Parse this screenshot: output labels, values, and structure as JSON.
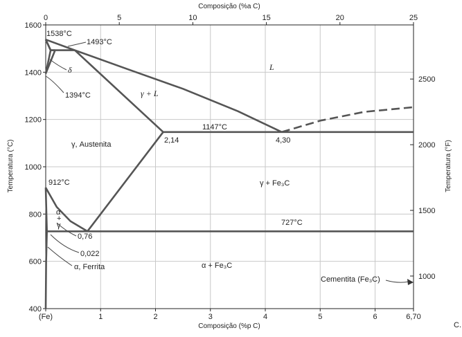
{
  "chart_data": {
    "type": "line",
    "title": "",
    "xlabel": "Composição (%p C)",
    "x2label": "Composição (%a C)",
    "ylabel": "Temperatura (°C)",
    "y2label": "Temperatura (°F)",
    "xlim": [
      0,
      6.7
    ],
    "ylim": [
      400,
      1600
    ],
    "x2lim": [
      0,
      25
    ],
    "grid": true,
    "xticks": [
      "(Fe)",
      "1",
      "2",
      "3",
      "4",
      "5",
      "6",
      "6,70"
    ],
    "x2ticks": [
      "0",
      "5",
      "10",
      "15",
      "20",
      "25"
    ],
    "yticks": [
      "400",
      "600",
      "800",
      "1000",
      "1200",
      "1400",
      "1600"
    ],
    "y2ticks": [
      "1000",
      "1500",
      "2000",
      "2500"
    ],
    "series": [
      {
        "points": [
          [
            0,
            1538
          ],
          [
            0.09,
            1493
          ],
          [
            0.53,
            1493
          ]
        ]
      },
      {
        "points": [
          [
            0.53,
            1493
          ],
          [
            2.14,
            1147
          ]
        ]
      },
      {
        "points": [
          [
            0,
            1538
          ],
          [
            0.53,
            1493
          ],
          [
            1.5,
            1412
          ],
          [
            2.5,
            1330
          ],
          [
            3.5,
            1235
          ],
          [
            4.3,
            1147
          ]
        ]
      },
      {
        "points": [
          [
            4.3,
            1147
          ],
          [
            5.0,
            1195
          ],
          [
            5.8,
            1232
          ],
          [
            6.7,
            1252
          ]
        ]
      },
      {
        "points": [
          [
            2.14,
            1147
          ],
          [
            6.7,
            1147
          ]
        ]
      },
      {
        "points": [
          [
            0,
            1538
          ],
          [
            0.09,
            1493
          ]
        ]
      },
      {
        "points": [
          [
            0.09,
            1493
          ],
          [
            0,
            1394
          ]
        ]
      },
      {
        "points": [
          [
            0.17,
            1493
          ],
          [
            0,
            1394
          ]
        ]
      },
      {
        "points": [
          [
            0.17,
            1493
          ],
          [
            0.09,
            1493
          ]
        ]
      },
      {
        "points": [
          [
            2.14,
            1147
          ],
          [
            0.76,
            727
          ]
        ]
      },
      {
        "points": [
          [
            0,
            912
          ],
          [
            0.2,
            830
          ],
          [
            0.45,
            770
          ],
          [
            0.76,
            727
          ]
        ]
      },
      {
        "points": [
          [
            0,
            912
          ],
          [
            0.022,
            727
          ]
        ]
      },
      {
        "points": [
          [
            0.022,
            727
          ],
          [
            6.7,
            727
          ]
        ]
      },
      {
        "points": [
          [
            0.022,
            727
          ],
          [
            0.008,
            600
          ],
          [
            0,
            400
          ]
        ]
      }
    ],
    "annotations": [
      "1538°C",
      "1493°C",
      "1394°C",
      "1147°C",
      "912°C",
      "727°C",
      "2,14",
      "4,30",
      "0,76",
      "0,022",
      "L",
      "δ",
      "γ + L",
      "γ, Austenita",
      "γ + Fe₃C",
      "α + Fe₃C",
      "α",
      "+",
      "γ",
      "α, Ferrita",
      "Cementita (Fe₃C)",
      "C."
    ]
  },
  "labels": {
    "xlabel": "Composição (%p C)",
    "x2label": "Composição (%a C)",
    "ylabel": "Temperatura (°C)",
    "y2label": "Temperatura (°F)",
    "t1538": "1538°C",
    "t1493": "1493°C",
    "t1394": "1394°C",
    "t1147": "1147°C",
    "t912": "912°C",
    "t727": "727°C",
    "c214": "2,14",
    "c430": "4,30",
    "c076": "0,76",
    "c0022": "0,022",
    "liquid": "L",
    "delta": "δ",
    "gamma_l": "γ + L",
    "austenite": "γ, Austenita",
    "gamma_fe3c": "γ + Fe₃C",
    "alpha_fe3c": "α + Fe₃C",
    "alpha_small": "α",
    "plus_small": "+",
    "gamma_small": "γ",
    "ferrite": "α, Ferrita",
    "cementite": "Cementita (Fe₃C)",
    "corner": "C."
  }
}
